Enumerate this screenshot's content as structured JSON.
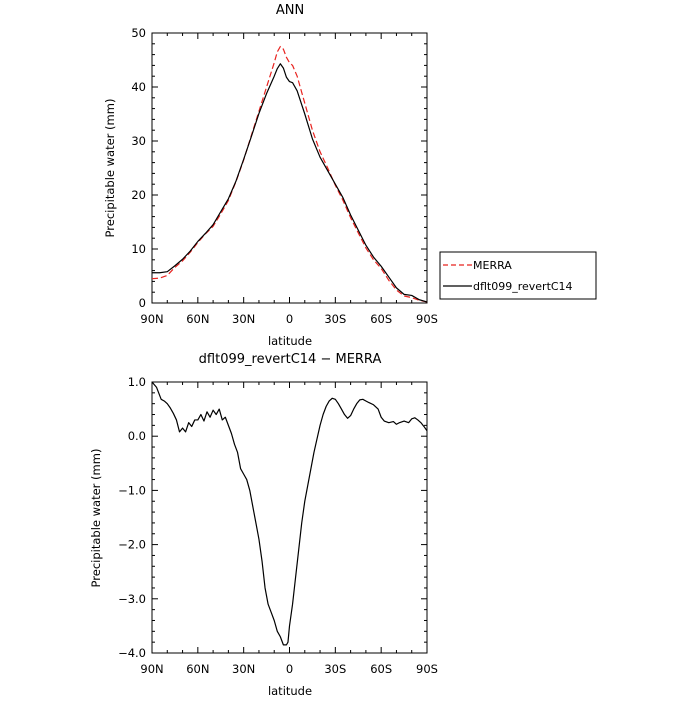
{
  "chart_data": [
    {
      "type": "line",
      "title": "ANN",
      "xlabel": "latitude",
      "ylabel": "Precipitable water (mm)",
      "xlim": [
        90,
        -90
      ],
      "ylim": [
        0,
        50
      ],
      "x_ticks": [
        90,
        60,
        30,
        0,
        -30,
        -60,
        -90
      ],
      "x_tick_labels": [
        "90N",
        "60N",
        "30N",
        "0",
        "30S",
        "60S",
        "90S"
      ],
      "y_ticks": [
        0,
        10,
        20,
        30,
        40,
        50
      ],
      "y_tick_labels": [
        "0",
        "10",
        "20",
        "30",
        "40",
        "50"
      ],
      "grid": false,
      "legend": {
        "placement": "right",
        "entries": [
          "MERRA",
          "dflt099_revertC14"
        ]
      },
      "series": [
        {
          "name": "MERRA",
          "color": "#e8231f",
          "dash": "dashed",
          "x": [
            90,
            85,
            80,
            75,
            70,
            65,
            60,
            55,
            50,
            45,
            40,
            35,
            30,
            25,
            20,
            15,
            10,
            8,
            6,
            4,
            2,
            0,
            -2,
            -5,
            -10,
            -15,
            -20,
            -25,
            -30,
            -35,
            -40,
            -45,
            -50,
            -55,
            -60,
            -65,
            -70,
            -75,
            -80,
            -85,
            -90
          ],
          "y": [
            4.5,
            4.6,
            5.1,
            6.6,
            7.8,
            9.4,
            11.2,
            12.8,
            14.2,
            16.5,
            19.0,
            22.5,
            26.5,
            31.0,
            35.5,
            40.0,
            44.5,
            46.5,
            47.5,
            47.0,
            45.5,
            44.5,
            44.0,
            42.0,
            37.0,
            32.0,
            28.0,
            25.0,
            21.8,
            19.0,
            15.8,
            13.0,
            10.2,
            8.0,
            6.4,
            4.2,
            2.4,
            1.3,
            1.0,
            0.5,
            0.2
          ]
        },
        {
          "name": "dflt099_revertC14",
          "color": "#000000",
          "dash": "solid",
          "x": [
            90,
            85,
            80,
            75,
            70,
            65,
            60,
            55,
            50,
            45,
            40,
            35,
            30,
            25,
            20,
            15,
            10,
            8,
            6,
            4,
            2,
            0,
            -2,
            -5,
            -10,
            -15,
            -20,
            -25,
            -30,
            -35,
            -40,
            -45,
            -50,
            -55,
            -60,
            -65,
            -70,
            -75,
            -80,
            -85,
            -90
          ],
          "y": [
            5.6,
            5.6,
            5.8,
            6.9,
            8.1,
            9.6,
            11.4,
            12.9,
            14.5,
            16.9,
            19.3,
            22.6,
            26.6,
            30.8,
            35.1,
            38.8,
            42.0,
            43.4,
            44.3,
            43.5,
            41.8,
            41.0,
            40.8,
            39.3,
            35.0,
            30.4,
            27.0,
            24.5,
            22.0,
            19.5,
            16.3,
            13.5,
            10.7,
            8.5,
            6.8,
            4.8,
            2.8,
            1.6,
            1.4,
            0.6,
            0.2
          ]
        }
      ]
    },
    {
      "type": "line",
      "title": "dflt099_revertC14 − MERRA",
      "xlabel": "latitude",
      "ylabel": "Precipitable water (mm)",
      "xlim": [
        90,
        -90
      ],
      "ylim": [
        -4.0,
        1.0
      ],
      "x_ticks": [
        90,
        60,
        30,
        0,
        -30,
        -60,
        -90
      ],
      "x_tick_labels": [
        "90N",
        "60N",
        "30N",
        "0",
        "30S",
        "60S",
        "90S"
      ],
      "y_ticks": [
        1.0,
        0.0,
        -1.0,
        -2.0,
        -3.0,
        -4.0
      ],
      "y_tick_labels": [
        "1.0",
        "0.0",
        "−1.0",
        "−2.0",
        "−3.0",
        "−4.0"
      ],
      "grid": false,
      "series": [
        {
          "color": "#000000",
          "dash": "solid",
          "x": [
            90,
            87,
            84,
            82,
            80,
            78,
            76,
            74,
            72,
            70,
            68,
            66,
            64,
            62,
            60,
            58,
            56,
            54,
            52,
            50,
            48,
            46,
            44,
            42,
            40,
            38,
            36,
            34,
            32,
            30,
            28,
            26,
            24,
            22,
            20,
            18,
            16,
            14,
            12,
            10,
            8,
            6,
            4,
            2,
            1,
            0,
            -1,
            -2,
            -4,
            -6,
            -8,
            -10,
            -12,
            -14,
            -16,
            -18,
            -20,
            -22,
            -24,
            -26,
            -28,
            -30,
            -32,
            -34,
            -36,
            -38,
            -40,
            -42,
            -44,
            -46,
            -48,
            -50,
            -52,
            -55,
            -58,
            -60,
            -62,
            -65,
            -68,
            -70,
            -72,
            -75,
            -78,
            -80,
            -82,
            -84,
            -86,
            -88,
            -90
          ],
          "y": [
            1.0,
            0.9,
            0.68,
            0.65,
            0.6,
            0.52,
            0.42,
            0.3,
            0.08,
            0.15,
            0.08,
            0.25,
            0.18,
            0.3,
            0.3,
            0.4,
            0.28,
            0.45,
            0.35,
            0.48,
            0.4,
            0.5,
            0.3,
            0.35,
            0.2,
            0.05,
            -0.15,
            -0.3,
            -0.6,
            -0.7,
            -0.8,
            -1.0,
            -1.3,
            -1.6,
            -1.9,
            -2.3,
            -2.8,
            -3.1,
            -3.25,
            -3.4,
            -3.6,
            -3.7,
            -3.85,
            -3.85,
            -3.8,
            -3.5,
            -3.3,
            -3.1,
            -2.6,
            -2.1,
            -1.6,
            -1.2,
            -0.9,
            -0.6,
            -0.3,
            -0.05,
            0.2,
            0.4,
            0.55,
            0.65,
            0.7,
            0.68,
            0.6,
            0.5,
            0.4,
            0.33,
            0.38,
            0.5,
            0.6,
            0.67,
            0.68,
            0.65,
            0.62,
            0.58,
            0.5,
            0.35,
            0.28,
            0.25,
            0.27,
            0.22,
            0.25,
            0.28,
            0.25,
            0.32,
            0.34,
            0.3,
            0.25,
            0.18,
            0.1
          ]
        }
      ]
    }
  ]
}
